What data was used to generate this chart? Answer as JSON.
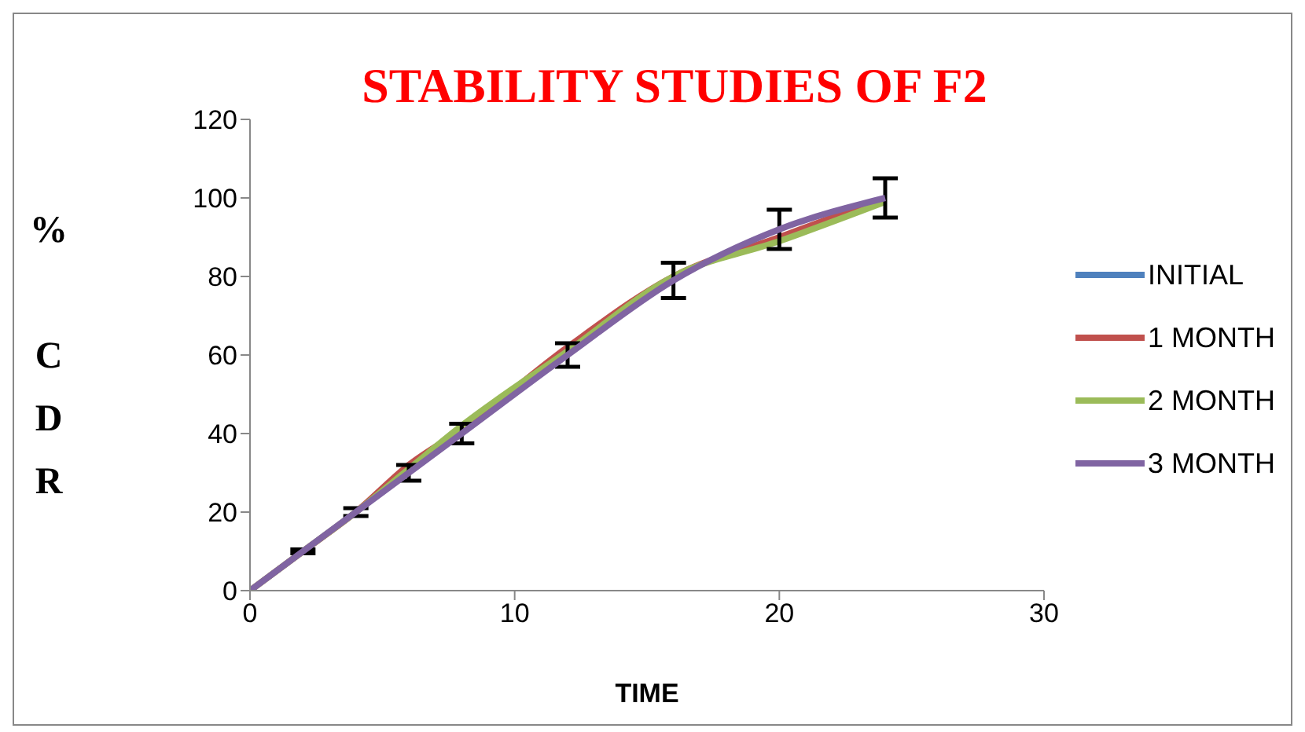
{
  "chart_data": {
    "type": "line",
    "title": "STABILITY STUDIES OF F2",
    "xlabel": "TIME",
    "ylabel": "% CDR",
    "x": [
      0,
      2,
      4,
      6,
      8,
      12,
      16,
      20,
      24
    ],
    "series": [
      {
        "name": "INITIAL",
        "color": "#4f81bd",
        "values": [
          null,
          null,
          null,
          null,
          null,
          null,
          null,
          null,
          null
        ]
      },
      {
        "name": "1 MONTH",
        "color": "#c0504d",
        "values": [
          0,
          10,
          20,
          32,
          41,
          62,
          80,
          90,
          100
        ]
      },
      {
        "name": "2 MONTH",
        "color": "#9bbb59",
        "values": [
          0,
          10,
          20,
          31,
          42,
          61,
          80,
          89,
          99
        ]
      },
      {
        "name": "3 MONTH",
        "color": "#8064a2",
        "values": [
          0,
          10,
          20,
          30,
          40,
          60,
          79,
          92,
          100
        ],
        "errors": [
          0,
          0.5,
          1,
          2,
          2.5,
          3,
          4.5,
          5,
          5
        ]
      }
    ],
    "xlim": [
      0,
      30
    ],
    "xticks": [
      0,
      10,
      20,
      30
    ],
    "ylim": [
      0,
      120
    ],
    "yticks": [
      0,
      20,
      40,
      60,
      80,
      100,
      120
    ],
    "grid": false,
    "legend": "right",
    "marker": "none",
    "line_style": "solid"
  }
}
